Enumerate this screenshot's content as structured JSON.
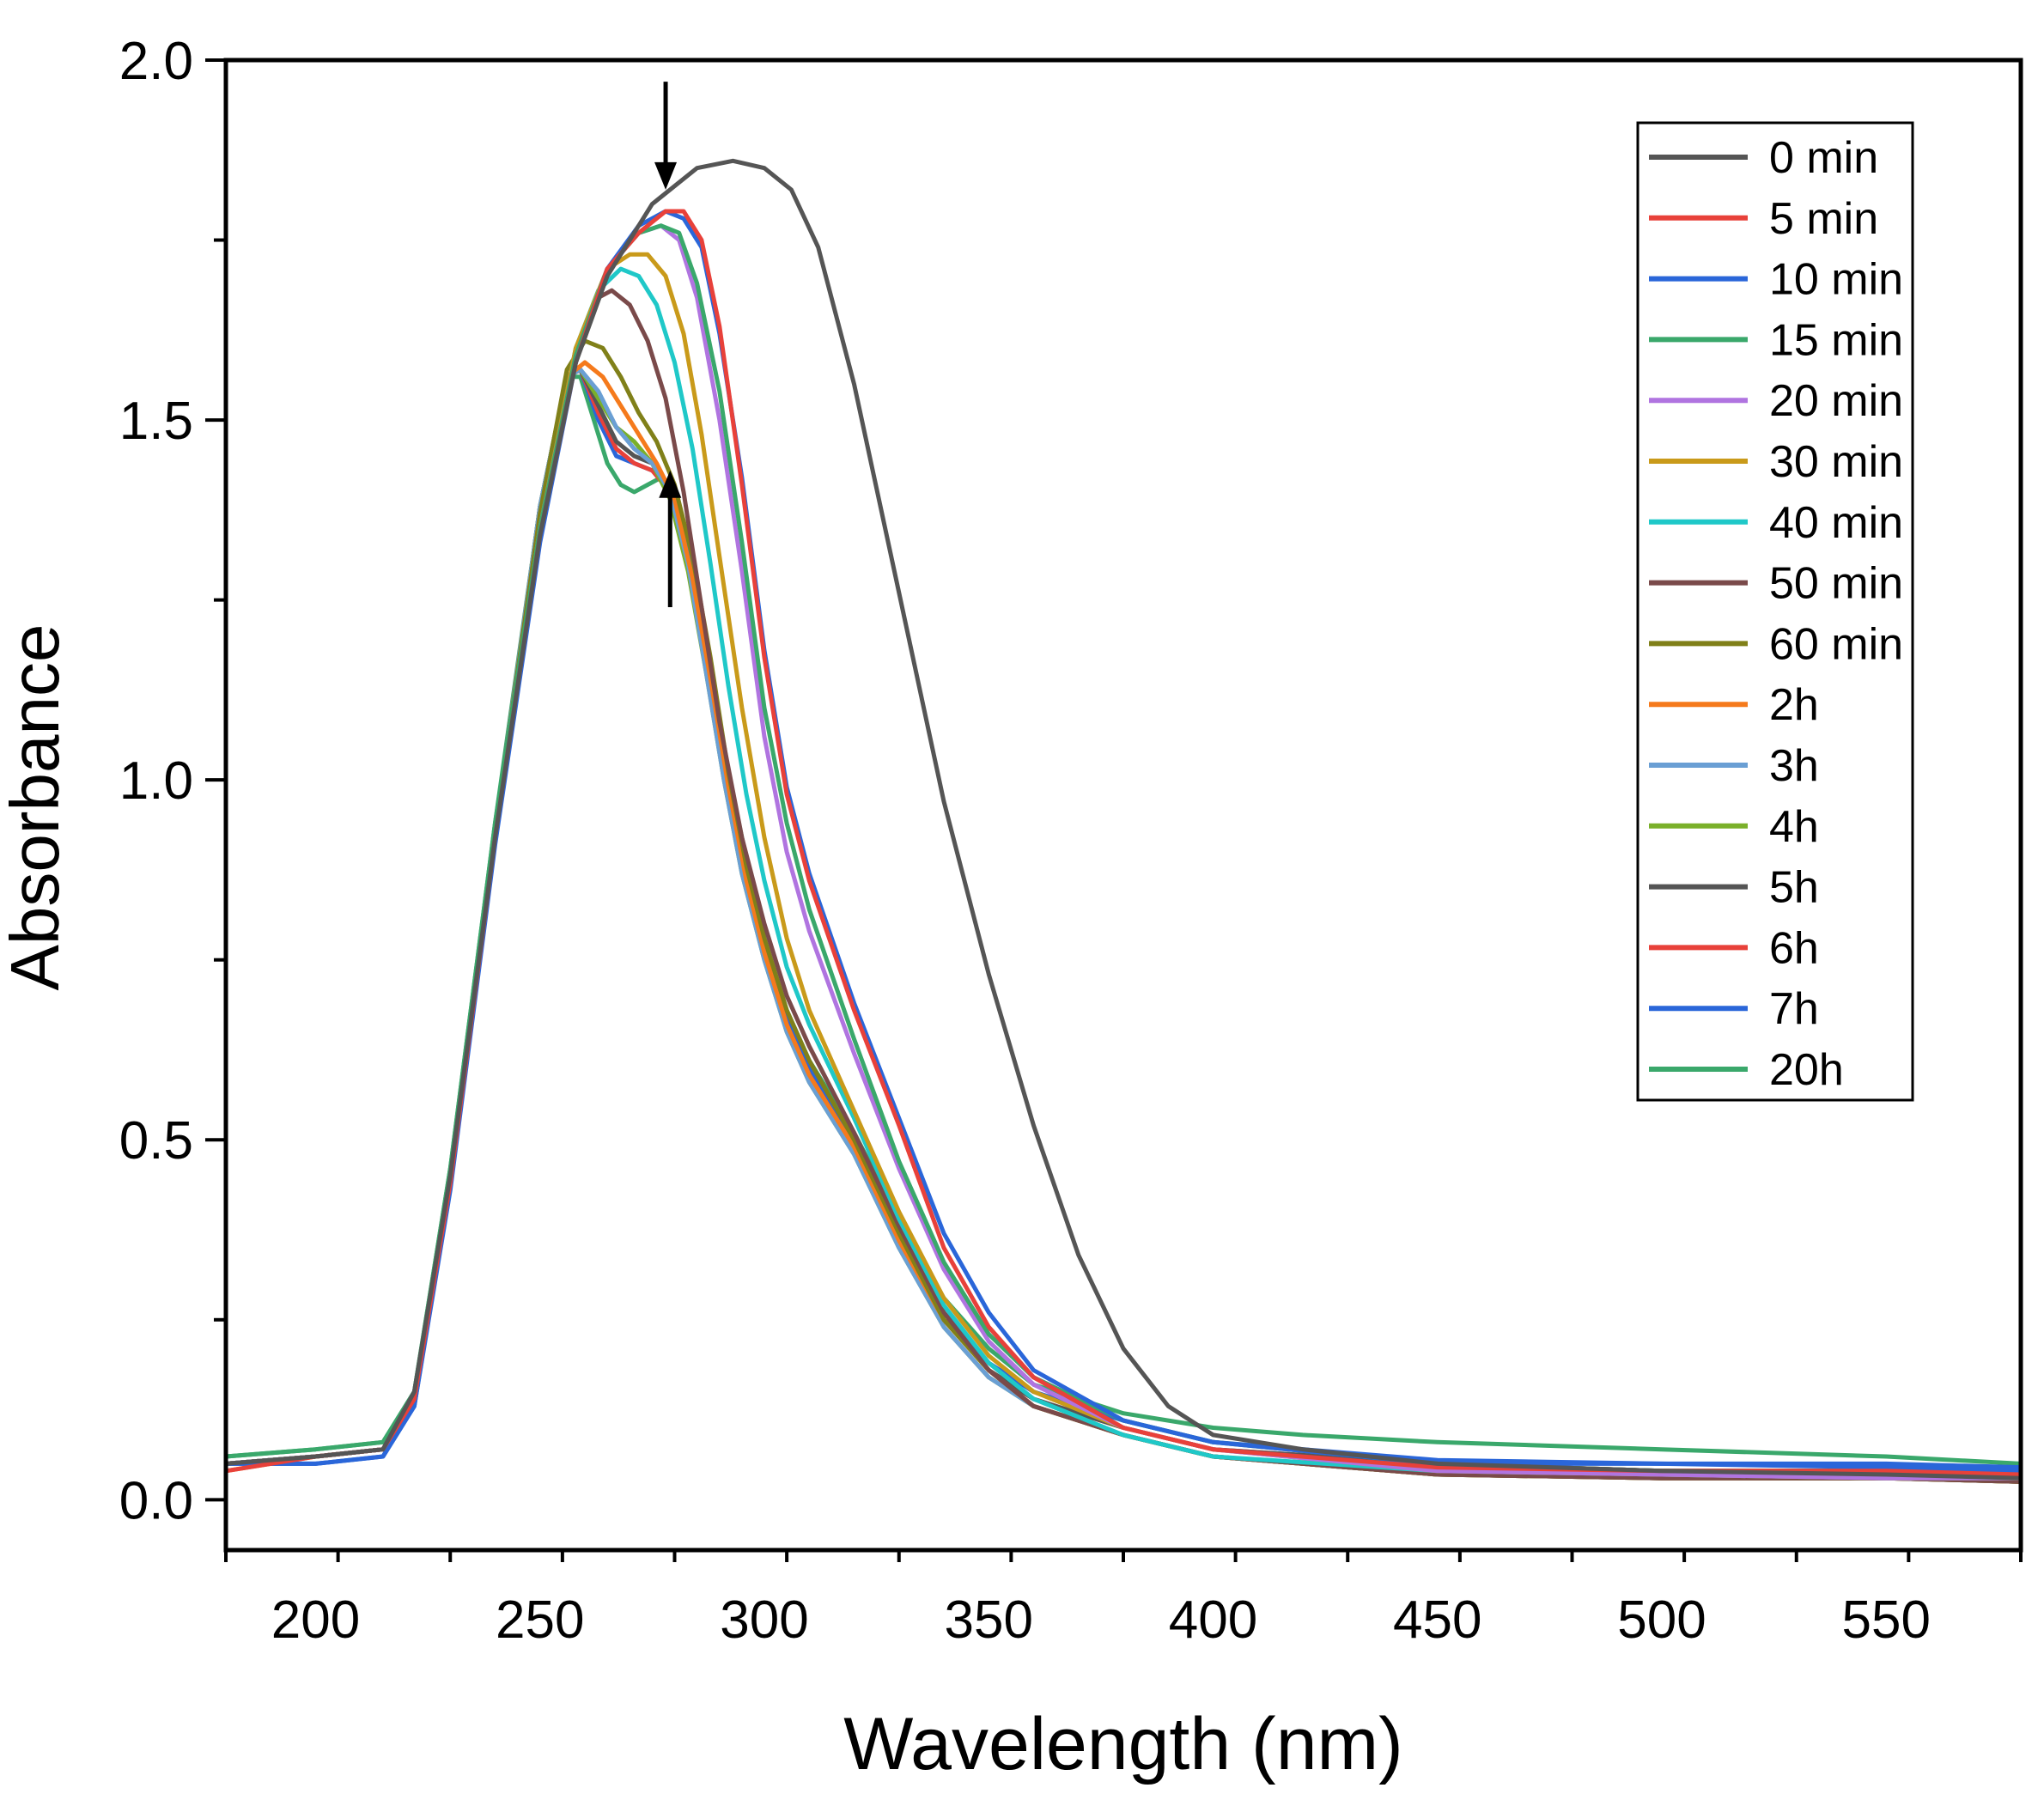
{
  "chart_data": {
    "type": "line",
    "title": "",
    "xlabel": "Wavelength (nm)",
    "ylabel": "Absorbance",
    "xlim": [
      180,
      580
    ],
    "ylim": [
      -0.07,
      2.0
    ],
    "x_ticks": [
      200,
      250,
      300,
      350,
      400,
      450,
      500,
      550
    ],
    "x_tick_labels": [
      "200",
      "250",
      "300",
      "350",
      "400",
      "450",
      "500",
      "550"
    ],
    "y_ticks": [
      0.0,
      0.5,
      1.0,
      1.5,
      2.0
    ],
    "y_tick_labels": [
      "0.0",
      "0.5",
      "1.0",
      "1.5",
      "2.0"
    ],
    "legend_position": "top-right",
    "annotations": [
      {
        "type": "arrow",
        "direction": "down",
        "wavelength": 278,
        "absorbance_from": 1.97,
        "absorbance_to": 1.82
      },
      {
        "type": "arrow",
        "direction": "up",
        "wavelength": 279,
        "absorbance_from": 1.24,
        "absorbance_to": 1.43
      }
    ],
    "series": [
      {
        "name": "0 min",
        "color": "#555555",
        "x": [
          180,
          200,
          215,
          222,
          230,
          240,
          250,
          258,
          265,
          275,
          285,
          293,
          300,
          306,
          312,
          320,
          330,
          340,
          350,
          360,
          370,
          380,
          390,
          400,
          420,
          450,
          500,
          550,
          580
        ],
        "values": [
          0.05,
          0.06,
          0.07,
          0.15,
          0.45,
          0.92,
          1.34,
          1.58,
          1.7,
          1.8,
          1.85,
          1.86,
          1.85,
          1.82,
          1.74,
          1.55,
          1.26,
          0.97,
          0.73,
          0.52,
          0.34,
          0.21,
          0.13,
          0.09,
          0.07,
          0.05,
          0.04,
          0.035,
          0.03
        ]
      },
      {
        "name": "5 min",
        "color": "#e8413a",
        "x": [
          180,
          200,
          215,
          222,
          230,
          240,
          250,
          258,
          265,
          272,
          278,
          282,
          286,
          290,
          295,
          300,
          305,
          310,
          320,
          330,
          340,
          350,
          360,
          380,
          400,
          450,
          500,
          550,
          580
        ],
        "values": [
          0.04,
          0.06,
          0.07,
          0.14,
          0.44,
          0.92,
          1.34,
          1.58,
          1.71,
          1.76,
          1.79,
          1.79,
          1.75,
          1.63,
          1.41,
          1.17,
          0.98,
          0.86,
          0.68,
          0.52,
          0.35,
          0.24,
          0.17,
          0.1,
          0.07,
          0.045,
          0.04,
          0.04,
          0.035
        ]
      },
      {
        "name": "10 min",
        "color": "#2a66d9",
        "x": [
          180,
          200,
          215,
          222,
          230,
          240,
          250,
          258,
          265,
          272,
          278,
          282,
          286,
          290,
          295,
          300,
          305,
          310,
          320,
          330,
          340,
          350,
          360,
          380,
          400,
          450,
          500,
          550,
          580
        ],
        "values": [
          0.05,
          0.05,
          0.06,
          0.13,
          0.43,
          0.91,
          1.33,
          1.58,
          1.71,
          1.77,
          1.79,
          1.78,
          1.74,
          1.62,
          1.42,
          1.18,
          0.99,
          0.87,
          0.69,
          0.53,
          0.37,
          0.26,
          0.18,
          0.11,
          0.08,
          0.05,
          0.05,
          0.045,
          0.04
        ]
      },
      {
        "name": "15 min",
        "color": "#3aa86b",
        "x": [
          180,
          200,
          215,
          222,
          230,
          240,
          250,
          258,
          265,
          272,
          277,
          281,
          285,
          290,
          295,
          300,
          305,
          310,
          320,
          330,
          340,
          350,
          360,
          380,
          400,
          450,
          500,
          550,
          580
        ],
        "values": [
          0.06,
          0.07,
          0.08,
          0.15,
          0.46,
          0.94,
          1.35,
          1.59,
          1.71,
          1.76,
          1.77,
          1.76,
          1.69,
          1.54,
          1.33,
          1.1,
          0.94,
          0.82,
          0.64,
          0.47,
          0.33,
          0.23,
          0.17,
          0.11,
          0.08,
          0.05,
          0.04,
          0.04,
          0.035
        ]
      },
      {
        "name": "20 min",
        "color": "#b074e0",
        "x": [
          180,
          200,
          215,
          222,
          230,
          240,
          250,
          258,
          265,
          272,
          277,
          281,
          285,
          290,
          295,
          300,
          305,
          310,
          320,
          330,
          340,
          350,
          360,
          380,
          400,
          450,
          500,
          550,
          580
        ],
        "values": [
          0.05,
          0.06,
          0.07,
          0.14,
          0.45,
          0.93,
          1.35,
          1.59,
          1.71,
          1.76,
          1.77,
          1.75,
          1.67,
          1.5,
          1.29,
          1.06,
          0.9,
          0.79,
          0.62,
          0.46,
          0.32,
          0.22,
          0.16,
          0.1,
          0.07,
          0.04,
          0.035,
          0.03,
          0.03
        ]
      },
      {
        "name": "30 min",
        "color": "#c99a1a",
        "x": [
          180,
          200,
          215,
          222,
          230,
          240,
          250,
          258,
          265,
          270,
          274,
          278,
          282,
          286,
          290,
          295,
          300,
          305,
          310,
          320,
          330,
          340,
          350,
          360,
          380,
          400,
          450,
          500,
          550,
          580
        ],
        "values": [
          0.05,
          0.06,
          0.07,
          0.14,
          0.45,
          0.93,
          1.35,
          1.6,
          1.71,
          1.73,
          1.73,
          1.7,
          1.62,
          1.48,
          1.31,
          1.1,
          0.92,
          0.78,
          0.68,
          0.54,
          0.4,
          0.28,
          0.2,
          0.15,
          0.1,
          0.07,
          0.04,
          0.035,
          0.03,
          0.03
        ]
      },
      {
        "name": "40 min",
        "color": "#1fc8c8",
        "x": [
          180,
          200,
          215,
          222,
          230,
          240,
          250,
          258,
          263,
          268,
          272,
          276,
          280,
          284,
          288,
          292,
          296,
          300,
          305,
          310,
          320,
          330,
          340,
          350,
          360,
          380,
          400,
          450,
          500,
          550,
          580
        ],
        "values": [
          0.05,
          0.06,
          0.07,
          0.14,
          0.45,
          0.93,
          1.35,
          1.6,
          1.68,
          1.71,
          1.7,
          1.66,
          1.58,
          1.46,
          1.3,
          1.13,
          0.98,
          0.86,
          0.74,
          0.66,
          0.53,
          0.39,
          0.27,
          0.19,
          0.14,
          0.09,
          0.06,
          0.04,
          0.035,
          0.03,
          0.03
        ]
      },
      {
        "name": "50 min",
        "color": "#7a4a4a",
        "x": [
          180,
          200,
          215,
          222,
          230,
          240,
          250,
          258,
          263,
          266,
          270,
          274,
          278,
          282,
          286,
          290,
          295,
          300,
          305,
          310,
          320,
          330,
          340,
          350,
          360,
          380,
          400,
          450,
          500,
          550,
          580
        ],
        "values": [
          0.05,
          0.06,
          0.07,
          0.14,
          0.45,
          0.93,
          1.35,
          1.6,
          1.67,
          1.68,
          1.66,
          1.61,
          1.53,
          1.4,
          1.24,
          1.08,
          0.92,
          0.8,
          0.7,
          0.63,
          0.51,
          0.38,
          0.26,
          0.18,
          0.13,
          0.09,
          0.06,
          0.035,
          0.03,
          0.03,
          0.025
        ]
      },
      {
        "name": "60 min",
        "color": "#808019",
        "x": [
          180,
          200,
          215,
          222,
          230,
          240,
          250,
          256,
          260,
          264,
          268,
          272,
          276,
          280,
          284,
          288,
          292,
          296,
          300,
          305,
          310,
          320,
          330,
          340,
          350,
          360,
          380,
          400,
          450,
          500,
          550,
          580
        ],
        "values": [
          0.05,
          0.06,
          0.07,
          0.14,
          0.45,
          0.93,
          1.37,
          1.57,
          1.61,
          1.6,
          1.56,
          1.51,
          1.47,
          1.41,
          1.31,
          1.17,
          1.01,
          0.88,
          0.78,
          0.68,
          0.61,
          0.5,
          0.37,
          0.25,
          0.18,
          0.13,
          0.09,
          0.06,
          0.035,
          0.03,
          0.03,
          0.025
        ]
      },
      {
        "name": "2h",
        "color": "#f57a1c",
        "x": [
          180,
          200,
          215,
          222,
          230,
          240,
          250,
          256,
          260,
          264,
          268,
          272,
          276,
          280,
          284,
          288,
          292,
          296,
          300,
          305,
          310,
          320,
          330,
          340,
          350,
          360,
          380,
          400,
          450,
          500,
          550,
          580
        ],
        "values": [
          0.04,
          0.06,
          0.07,
          0.14,
          0.45,
          0.93,
          1.37,
          1.56,
          1.58,
          1.56,
          1.52,
          1.48,
          1.44,
          1.39,
          1.28,
          1.14,
          0.99,
          0.86,
          0.76,
          0.66,
          0.59,
          0.49,
          0.36,
          0.25,
          0.18,
          0.13,
          0.09,
          0.06,
          0.035,
          0.03,
          0.03,
          0.025
        ]
      },
      {
        "name": "3h",
        "color": "#6a9fd4",
        "x": [
          180,
          200,
          215,
          222,
          230,
          240,
          250,
          256,
          259,
          263,
          267,
          271,
          275,
          279,
          283,
          287,
          291,
          295,
          300,
          305,
          310,
          320,
          330,
          340,
          350,
          360,
          380,
          400,
          450,
          500,
          550,
          580
        ],
        "values": [
          0.05,
          0.06,
          0.07,
          0.14,
          0.45,
          0.93,
          1.38,
          1.56,
          1.57,
          1.54,
          1.49,
          1.46,
          1.44,
          1.4,
          1.3,
          1.15,
          1.0,
          0.87,
          0.75,
          0.65,
          0.58,
          0.48,
          0.35,
          0.24,
          0.17,
          0.13,
          0.09,
          0.06,
          0.035,
          0.03,
          0.03,
          0.025
        ]
      },
      {
        "name": "4h",
        "color": "#7ab02a",
        "x": [
          180,
          200,
          215,
          222,
          230,
          240,
          250,
          256,
          259,
          263,
          267,
          271,
          275,
          279,
          283,
          287,
          291,
          295,
          300,
          305,
          310,
          320,
          330,
          340,
          350,
          360,
          380,
          400,
          450,
          500,
          550,
          580
        ],
        "values": [
          0.05,
          0.06,
          0.07,
          0.14,
          0.45,
          0.93,
          1.38,
          1.56,
          1.57,
          1.53,
          1.49,
          1.47,
          1.44,
          1.39,
          1.29,
          1.15,
          1.0,
          0.87,
          0.75,
          0.65,
          0.58,
          0.48,
          0.35,
          0.24,
          0.17,
          0.13,
          0.09,
          0.06,
          0.035,
          0.03,
          0.03,
          0.025
        ]
      },
      {
        "name": "5h",
        "color": "#555555",
        "x": [
          180,
          200,
          215,
          222,
          230,
          240,
          250,
          256,
          259,
          263,
          267,
          271,
          275,
          279,
          283,
          287,
          291,
          295,
          300,
          305,
          310,
          320,
          330,
          340,
          350,
          360,
          380,
          400,
          450,
          500,
          550,
          580
        ],
        "values": [
          0.05,
          0.06,
          0.07,
          0.14,
          0.45,
          0.93,
          1.38,
          1.56,
          1.57,
          1.52,
          1.47,
          1.45,
          1.44,
          1.4,
          1.3,
          1.16,
          1.01,
          0.88,
          0.76,
          0.66,
          0.59,
          0.49,
          0.36,
          0.25,
          0.18,
          0.14,
          0.1,
          0.07,
          0.05,
          0.04,
          0.04,
          0.035
        ]
      },
      {
        "name": "6h",
        "color": "#e8413a",
        "x": [
          180,
          200,
          215,
          222,
          230,
          240,
          250,
          256,
          259,
          263,
          267,
          271,
          275,
          279,
          283,
          287,
          291,
          295,
          300,
          305,
          310,
          320,
          330,
          340,
          350,
          360,
          380,
          400,
          450,
          500,
          550,
          580
        ],
        "values": [
          0.05,
          0.06,
          0.07,
          0.14,
          0.45,
          0.93,
          1.38,
          1.56,
          1.57,
          1.51,
          1.46,
          1.44,
          1.43,
          1.4,
          1.3,
          1.16,
          1.01,
          0.88,
          0.76,
          0.66,
          0.59,
          0.49,
          0.36,
          0.25,
          0.18,
          0.14,
          0.1,
          0.07,
          0.05,
          0.04,
          0.04,
          0.035
        ]
      },
      {
        "name": "7h",
        "color": "#2a66d9",
        "x": [
          180,
          200,
          215,
          222,
          230,
          240,
          250,
          256,
          259,
          263,
          267,
          271,
          275,
          279,
          283,
          287,
          291,
          295,
          300,
          305,
          310,
          320,
          330,
          340,
          350,
          360,
          380,
          400,
          450,
          500,
          550,
          580
        ],
        "values": [
          0.05,
          0.05,
          0.06,
          0.13,
          0.44,
          0.92,
          1.37,
          1.56,
          1.57,
          1.5,
          1.45,
          1.44,
          1.43,
          1.41,
          1.31,
          1.17,
          1.02,
          0.89,
          0.77,
          0.67,
          0.6,
          0.5,
          0.37,
          0.26,
          0.19,
          0.15,
          0.11,
          0.08,
          0.055,
          0.05,
          0.05,
          0.045
        ]
      },
      {
        "name": "20h",
        "color": "#3aa86b",
        "x": [
          180,
          200,
          215,
          222,
          230,
          240,
          250,
          256,
          259,
          262,
          265,
          268,
          271,
          274,
          277,
          280,
          284,
          288,
          292,
          296,
          300,
          305,
          310,
          320,
          330,
          340,
          350,
          360,
          380,
          400,
          420,
          450,
          500,
          550,
          580
        ],
        "values": [
          0.06,
          0.07,
          0.08,
          0.15,
          0.46,
          0.94,
          1.38,
          1.56,
          1.56,
          1.5,
          1.44,
          1.41,
          1.4,
          1.41,
          1.42,
          1.4,
          1.3,
          1.16,
          1.01,
          0.89,
          0.78,
          0.68,
          0.61,
          0.51,
          0.39,
          0.28,
          0.21,
          0.16,
          0.12,
          0.1,
          0.09,
          0.08,
          0.07,
          0.06,
          0.05
        ]
      }
    ]
  }
}
